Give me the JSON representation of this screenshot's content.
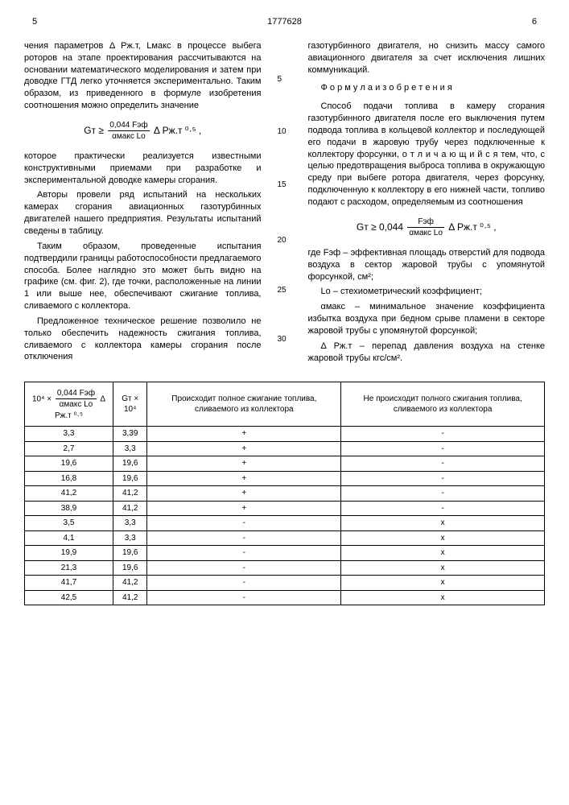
{
  "header": {
    "pageLeft": "5",
    "docNum": "1777628",
    "pageRight": "6"
  },
  "colLeft": {
    "p1": "чения параметров Δ Ρж.т, Lмакс в процессе выбега роторов на этапе проектирования рассчитываются на основании математического моделирования и затем при доводке ГТД легко уточняется экспериментально. Таким образом, из приведенного в формуле изобретения соотношения можно определить значение",
    "formula1_pre": "Gт ≥",
    "formula1_num": "0,044 Fэф",
    "formula1_den": "αмакс Lо",
    "formula1_post": " Δ Ρж.т ⁰·⁵ ,",
    "p2": "которое практически реализуется известными конструктивными приемами при разработке и экспериментальной доводке камеры сгорания.",
    "p3": "Авторы провели ряд испытаний на нескольких камерах сгорания авиационных газотурбинных двигателей нашего предприятия. Результаты испытаний сведены в таблицу.",
    "p4": "Таким образом, проведенные испытания подтвердили границы работоспособности предлагаемого способа. Более наглядно это может быть видно на графике (см. фиг. 2), где точки, расположенные на линии 1 или выше нее, обеспечивают сжигание топлива, сливаемого с коллектора.",
    "p5": "Предложенное техническое решение позволило не только обеспечить надежность сжигания топлива, сливаемого с коллектора камеры сгорания после отключения"
  },
  "lineNums": [
    "5",
    "10",
    "15",
    "20",
    "25",
    "30"
  ],
  "colRight": {
    "p1": "газотурбинного двигателя, но снизить массу самого авиационного двигателя за счет исключения лишних коммуникаций.",
    "headingPre": "Ф о р м у л а",
    "headingPost": "и з о б р е т е н и я",
    "p2": "Способ подачи топлива в камеру сгорания газотурбинного двигателя после его выключения путем подвода топлива в кольцевой коллектор и последующей его подачи в жаровую трубу через подключенные к коллектору форсунки, о т л и ч а ю щ и й с я  тем, что, с целью предотвращения выброса топлива в окружающую среду при выбеге ротора двигателя, через форсунку, подключенную к коллектору в его нижней части, топливо подают с расходом, определяемым из соотношения",
    "formula2_pre": "Gт ≥ 0,044 ",
    "formula2_num": "Fэф",
    "formula2_den": "αмакс Lо",
    "formula2_post": " Δ Ρж.т ⁰·⁵ ,",
    "p3": "где Fэф – эффективная площадь отверстий для подвода воздуха в сектор жаровой трубы с упомянутой форсункой, см²;",
    "p4": "Lо – стехиометрический коэффициент;",
    "p5": "αмакс – минимальное значение коэффициента избытка воздуха при бедном срыве пламени в секторе жаровой трубы с упомянутой форсункой;",
    "p6": "Δ Ρж.т – перепад давления воздуха на стенке жаровой трубы кгс/см²."
  },
  "table": {
    "h1_pre": "10⁴ × ",
    "h1_num": "0,044 Fэф",
    "h1_den": "αмакс Lо",
    "h1_post": " Δ Ρж.т ⁰·⁵",
    "h2": "Gт × 10⁴",
    "h3": "Происходит полное сжигание топлива, сливаемого из коллектора",
    "h4": "Не происходит полного сжигания топлива, сливаемого из коллектора",
    "rows": [
      [
        "3,3",
        "3,39",
        "+",
        "-"
      ],
      [
        "2,7",
        "3,3",
        "+",
        "-"
      ],
      [
        "19,6",
        "19,6",
        "+",
        "-"
      ],
      [
        "16,8",
        "19,6",
        "+",
        "-"
      ],
      [
        "41,2",
        "41,2",
        "+",
        "-"
      ],
      [
        "38,9",
        "41,2",
        "+",
        "-"
      ],
      [
        "3,5",
        "3,3",
        "-",
        "x"
      ],
      [
        "4,1",
        "3,3",
        "-",
        "x"
      ],
      [
        "19,9",
        "19,6",
        "-",
        "x"
      ],
      [
        "21,3",
        "19,6",
        "-",
        "x"
      ],
      [
        "41,7",
        "41,2",
        "-",
        "x"
      ],
      [
        "42,5",
        "41,2",
        "-",
        "x"
      ]
    ]
  }
}
